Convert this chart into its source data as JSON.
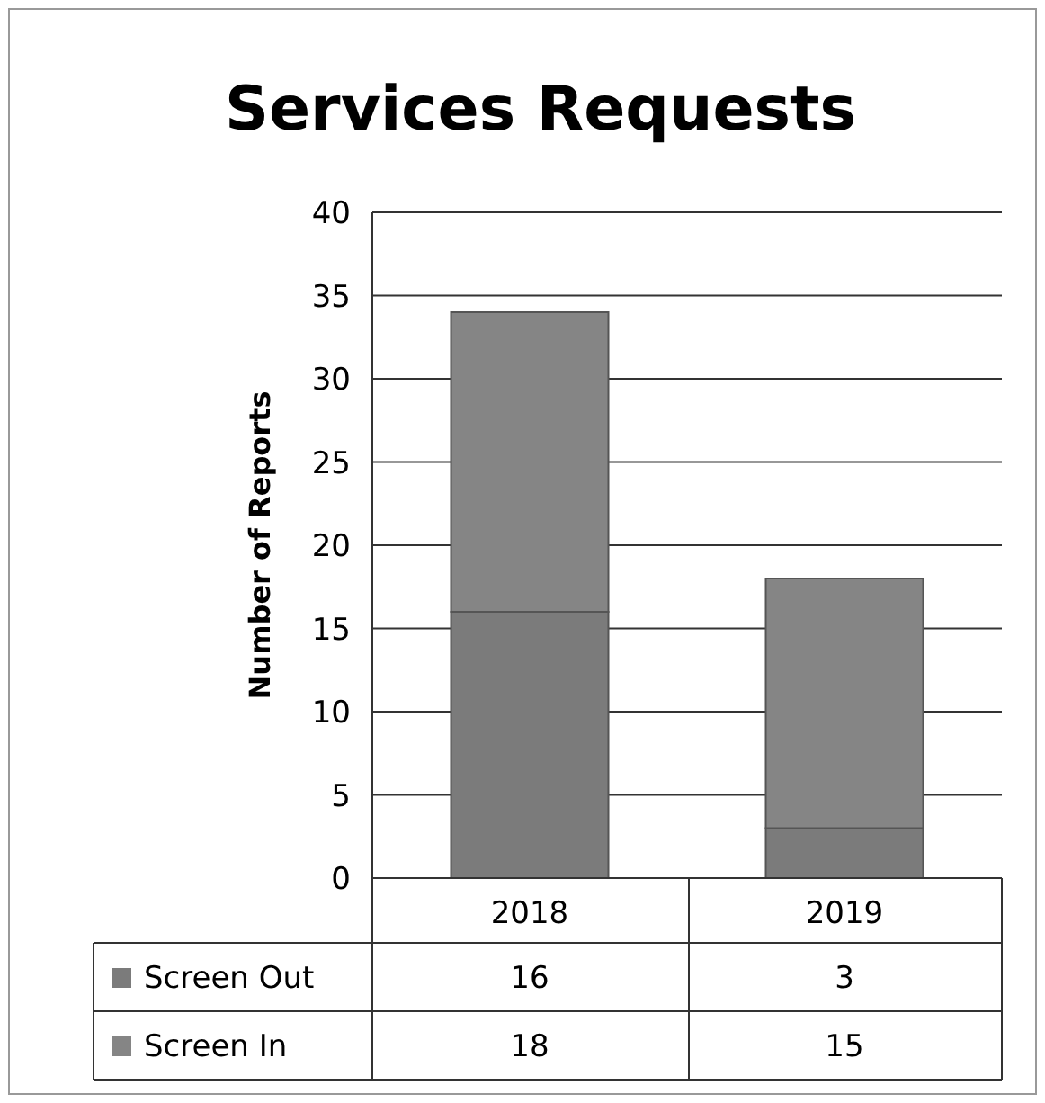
{
  "chart_data": {
    "type": "bar",
    "title": "Services Requests",
    "ylabel": "Number of Reports",
    "categories": [
      "2018",
      "2019"
    ],
    "stacked": true,
    "series": [
      {
        "name": "Screen Out",
        "color": "#7b7b7b",
        "values": [
          16,
          3
        ]
      },
      {
        "name": "Screen In",
        "color": "#858585",
        "values": [
          18,
          15
        ]
      }
    ],
    "ylim": [
      0,
      40
    ],
    "yticks": [
      0,
      5,
      10,
      15,
      20,
      25,
      30,
      35,
      40
    ],
    "grid": "y",
    "legend": "bottom",
    "data_labels": true
  }
}
